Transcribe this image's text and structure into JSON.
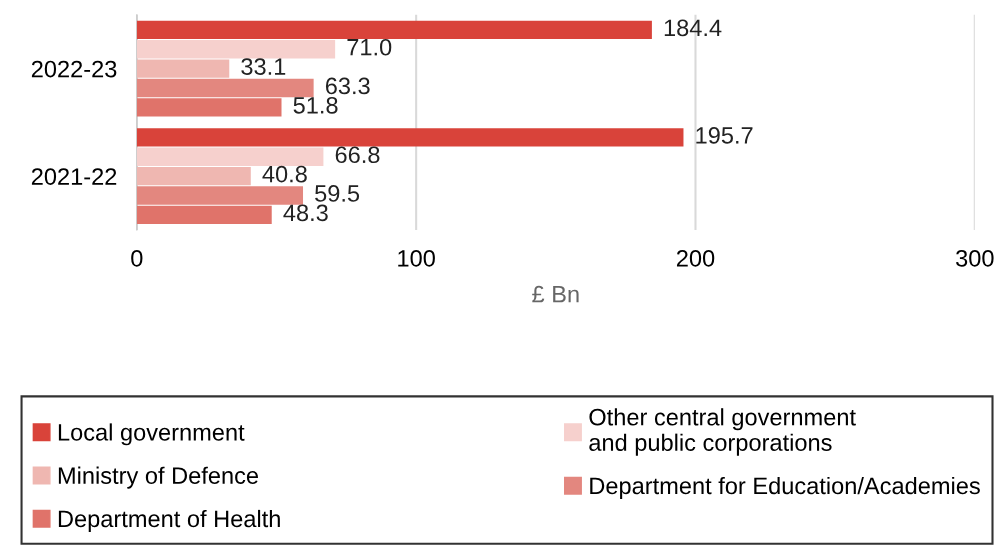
{
  "chart_data": {
    "type": "bar",
    "orientation": "horizontal",
    "xlabel": "£ Bn",
    "categories": [
      "2022-23",
      "2021-22"
    ],
    "series": [
      {
        "name": "Local government",
        "color": "#d9433a",
        "values": [
          184.4,
          195.7
        ],
        "value_labels": [
          "184.4",
          "195.7"
        ]
      },
      {
        "name": "Other central government\nand public corporations",
        "color": "#f6d0cd",
        "values": [
          71.0,
          66.8
        ],
        "value_labels": [
          "71.0",
          "66.8"
        ]
      },
      {
        "name": "Ministry of Defence",
        "color": "#efb7b1",
        "values": [
          33.1,
          40.8
        ],
        "value_labels": [
          "33.1",
          "40.8"
        ]
      },
      {
        "name": "Department for Education/Academies",
        "color": "#e3877f",
        "values": [
          63.3,
          59.5
        ],
        "value_labels": [
          "63.3",
          "59.5"
        ]
      },
      {
        "name": "Department of Health",
        "color": "#e0736a",
        "values": [
          51.8,
          48.3
        ],
        "value_labels": [
          "51.8",
          "48.3"
        ]
      }
    ],
    "xlim": [
      0,
      300
    ],
    "xticks": [
      0,
      100,
      200,
      300
    ],
    "grid": "x",
    "legend": "bottom"
  }
}
